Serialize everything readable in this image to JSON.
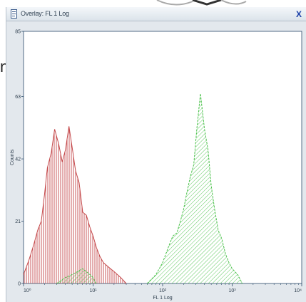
{
  "page": {
    "side_text": "n"
  },
  "window": {
    "title": "Overlay: FL 1 Log",
    "close_label": "X"
  },
  "colors": {
    "red_series": "#c4484a",
    "green_series": "#4cc24c",
    "frame_bg": "#e3e8ed",
    "plot_bg": "#ffffff",
    "axis": "#2a4a6a"
  },
  "icons": {
    "app": "document-icon",
    "close": "close-icon"
  },
  "chart_data": {
    "type": "area",
    "title": "",
    "xlabel": "FL 1 Log",
    "ylabel": "Counts",
    "xscale": "log",
    "xlim": [
      1,
      10000
    ],
    "ylim": [
      0,
      85
    ],
    "xticks": [
      1,
      10,
      100,
      1000,
      10000
    ],
    "xtick_labels": [
      "10⁰",
      "10¹",
      "10²",
      "10³",
      "10⁴"
    ],
    "yticks": [
      0,
      21,
      42,
      63,
      85
    ],
    "ytick_labels": [
      "0",
      "21",
      "42",
      "63",
      "85"
    ],
    "grid": false,
    "legend": "none",
    "series": [
      {
        "color": "red",
        "x": [
          1.0,
          1.2,
          1.4,
          1.6,
          1.8,
          2.0,
          2.2,
          2.5,
          2.8,
          3.2,
          3.6,
          4.0,
          4.5,
          5.0,
          5.6,
          6.3,
          7.1,
          8.0,
          9.0,
          10.0,
          11.2,
          12.6,
          14.1,
          15.8,
          17.8,
          20.0,
          25.0,
          30.0
        ],
        "y": [
          3,
          8,
          13,
          18,
          21,
          30,
          39,
          44,
          52,
          47,
          41,
          45,
          53,
          46,
          38,
          34,
          24,
          23,
          19,
          16,
          12,
          9,
          7,
          6,
          5,
          4,
          2,
          0
        ]
      },
      {
        "color": "green",
        "x": [
          60,
          80,
          100,
          120,
          140,
          160,
          180,
          200,
          220,
          250,
          280,
          310,
          350,
          400,
          450,
          500,
          560,
          630,
          710,
          800,
          900,
          1000,
          1200,
          1400
        ],
        "y": [
          0,
          3,
          7,
          12,
          16,
          17,
          21,
          25,
          30,
          36,
          40,
          52,
          64,
          52,
          45,
          33,
          25,
          18,
          15,
          10,
          7,
          5,
          3,
          0
        ]
      },
      {
        "color": "green",
        "x": [
          3.0,
          4.0,
          5.0,
          6.0,
          7.0,
          8.0,
          9.0,
          10.0,
          11.0
        ],
        "y": [
          0,
          2,
          3,
          4,
          5,
          4,
          3,
          2,
          0
        ]
      }
    ]
  }
}
